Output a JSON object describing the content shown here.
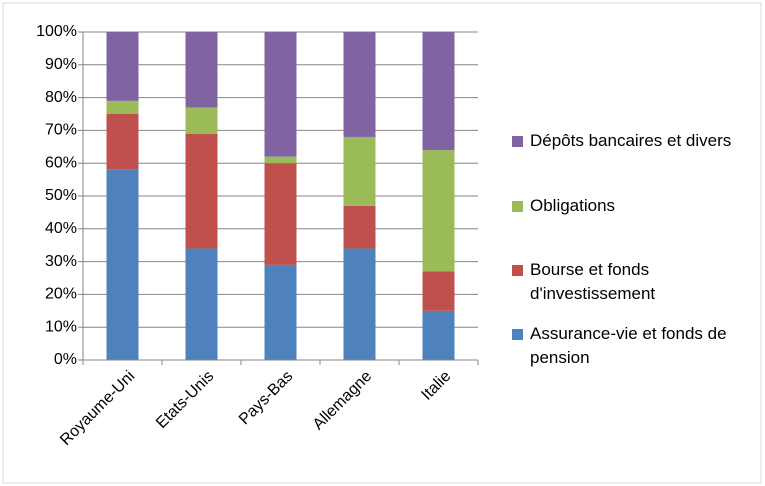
{
  "chart_data": {
    "type": "stacked_bar_percent",
    "categories": [
      "Royaume-Uni",
      "Etats-Unis",
      "Pays-Bas",
      "Allemagne",
      "Italie"
    ],
    "series": [
      {
        "name": "Assurance-vie et fonds de pension",
        "color": "#4f81bd",
        "values": [
          58,
          34,
          29,
          34,
          15
        ]
      },
      {
        "name": "Bourse et fonds d'investissement",
        "color": "#c0504d",
        "values": [
          17,
          35,
          31,
          13,
          12
        ]
      },
      {
        "name": "Obligations",
        "color": "#9bbb59",
        "values": [
          4,
          8,
          2,
          21,
          37
        ]
      },
      {
        "name": "Dépôts bancaires et divers",
        "color": "#8064a2",
        "values": [
          21,
          23,
          38,
          32,
          36
        ]
      }
    ],
    "ylim": [
      0,
      100
    ],
    "yticks": [
      {
        "value": 0,
        "label": "0%"
      },
      {
        "value": 10,
        "label": "10%"
      },
      {
        "value": 20,
        "label": "20%"
      },
      {
        "value": 30,
        "label": "30%"
      },
      {
        "value": 40,
        "label": "40%"
      },
      {
        "value": 50,
        "label": "50%"
      },
      {
        "value": 60,
        "label": "60%"
      },
      {
        "value": 70,
        "label": "70%"
      },
      {
        "value": 80,
        "label": "80%"
      },
      {
        "value": 90,
        "label": "90%"
      },
      {
        "value": 100,
        "label": "100%"
      }
    ],
    "grid": true,
    "legend": "right"
  }
}
